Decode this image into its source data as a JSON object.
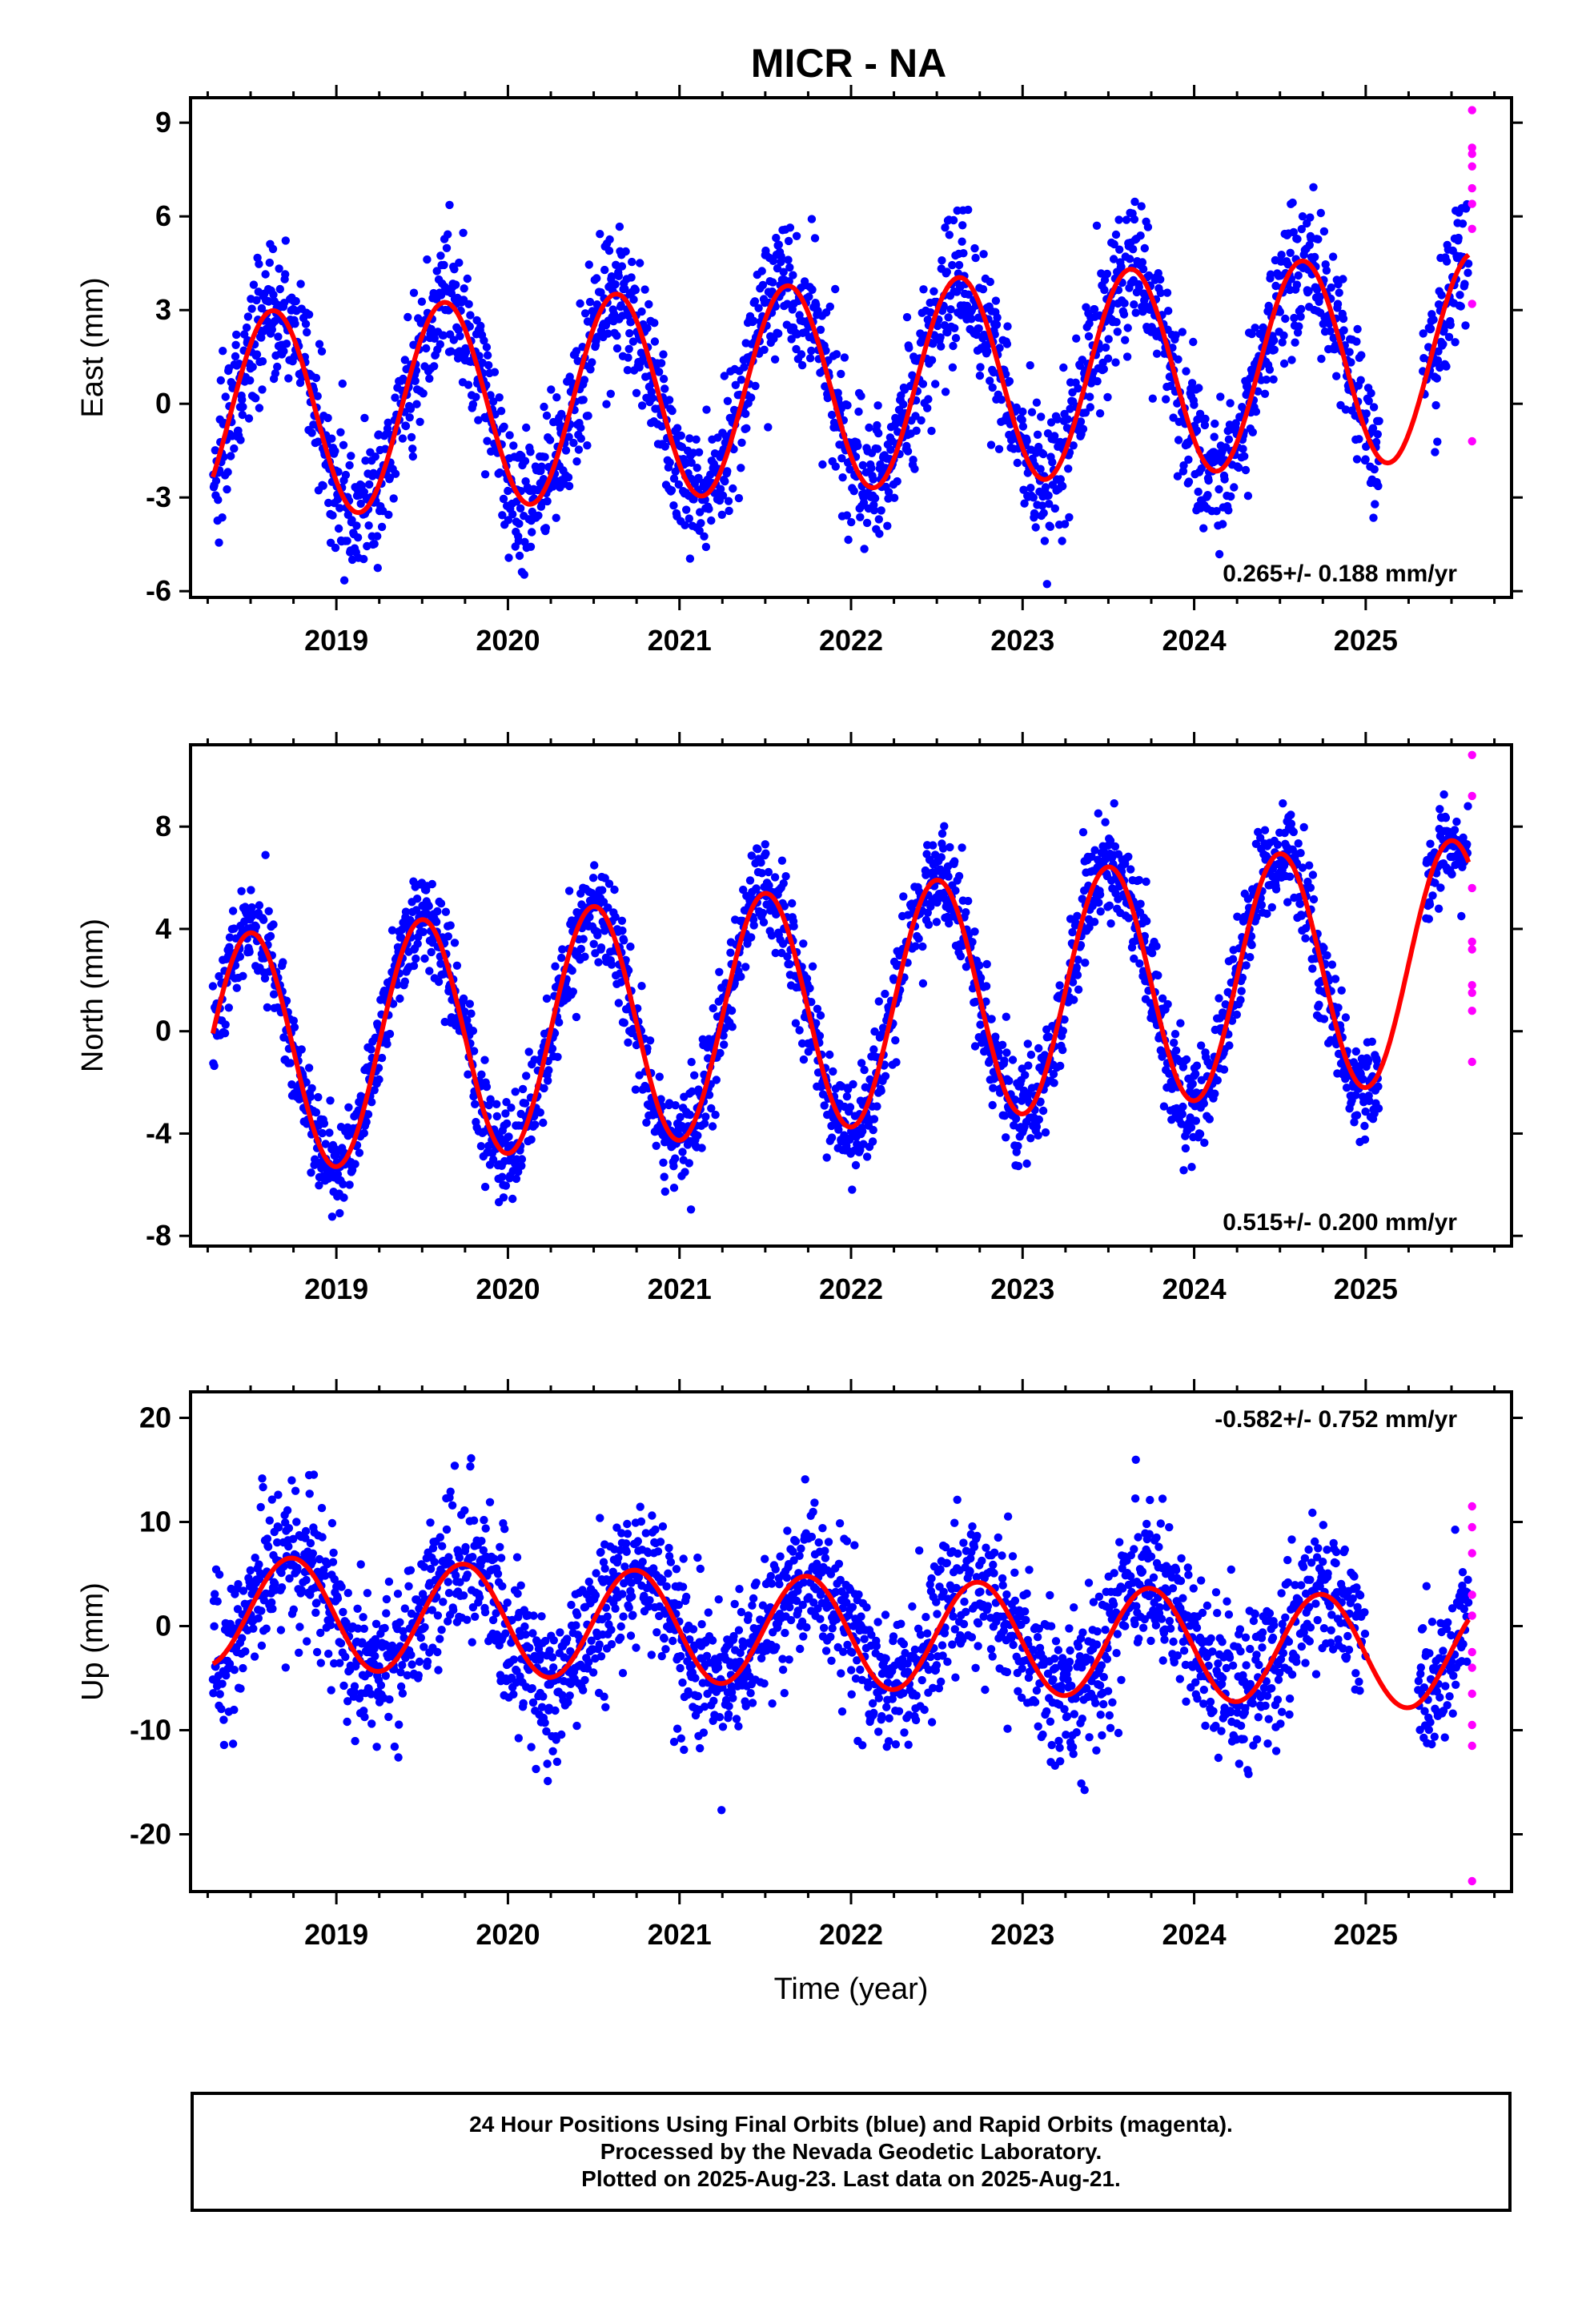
{
  "figure": {
    "title": "MICR - NA",
    "colors": {
      "final": "#0000ff",
      "rapid": "#ff00ff",
      "model": "#ff0000",
      "frame": "#000000"
    }
  },
  "chart_data": [
    {
      "type": "scatter",
      "component": "east",
      "ylabel": "East (mm)",
      "xlabel": "",
      "xlim": [
        2018.15,
        2025.85
      ],
      "ylim": [
        -6.2,
        9.8
      ],
      "yticks": [
        -6,
        -3,
        0,
        3,
        6,
        9
      ],
      "xticks": [
        2019,
        2020,
        2021,
        2022,
        2023,
        2024,
        2025
      ],
      "rate_label": "0.265+/- 0.188 mm/yr",
      "rate_position": "bottom-right",
      "model": {
        "offset": 0.55,
        "rate": 0.265,
        "ref_year": 2021.9,
        "amplitude": 3.3,
        "peak_phase": 0.63
      },
      "final_orbits": {
        "start": 2018.28,
        "end": 2025.6,
        "scatter_sd": 1.1,
        "gaps": [
          [
            2025.08,
            2025.33
          ]
        ]
      },
      "rapid_orbits": [
        {
          "x": 2025.62,
          "y": 9.4
        },
        {
          "x": 2025.62,
          "y": 8.2
        },
        {
          "x": 2025.62,
          "y": 8.0
        },
        {
          "x": 2025.62,
          "y": 7.6
        },
        {
          "x": 2025.62,
          "y": 6.9
        },
        {
          "x": 2025.62,
          "y": 6.4
        },
        {
          "x": 2025.62,
          "y": 5.6
        },
        {
          "x": 2025.62,
          "y": 3.2
        },
        {
          "x": 2025.62,
          "y": -1.2
        }
      ]
    },
    {
      "type": "scatter",
      "component": "north",
      "ylabel": "North (mm)",
      "xlabel": "",
      "xlim": [
        2018.15,
        2025.85
      ],
      "ylim": [
        -8.4,
        11.2
      ],
      "yticks": [
        -8,
        -4,
        0,
        4,
        8
      ],
      "xticks": [
        2019,
        2020,
        2021,
        2022,
        2023,
        2024,
        2025
      ],
      "rate_label": "0.515+/- 0.200 mm/yr",
      "rate_position": "bottom-right",
      "model": {
        "offset": 0.9,
        "rate": 0.515,
        "ref_year": 2021.9,
        "amplitude": 4.7,
        "peak_phase": 0.5
      },
      "final_orbits": {
        "start": 2018.28,
        "end": 2025.6,
        "scatter_sd": 1.0,
        "gaps": [
          [
            2025.08,
            2025.35
          ]
        ]
      },
      "rapid_orbits": [
        {
          "x": 2025.62,
          "y": 10.8
        },
        {
          "x": 2025.62,
          "y": 9.2
        },
        {
          "x": 2025.62,
          "y": 5.6
        },
        {
          "x": 2025.62,
          "y": 3.5
        },
        {
          "x": 2025.62,
          "y": 3.2
        },
        {
          "x": 2025.62,
          "y": 1.8
        },
        {
          "x": 2025.62,
          "y": 1.5
        },
        {
          "x": 2025.62,
          "y": 0.8
        },
        {
          "x": 2025.62,
          "y": -1.2
        }
      ]
    },
    {
      "type": "scatter",
      "component": "up",
      "ylabel": "Up (mm)",
      "xlabel": "Time (year)",
      "xlim": [
        2018.15,
        2025.85
      ],
      "ylim": [
        -25.5,
        22.5
      ],
      "yticks": [
        -20,
        -10,
        0,
        10,
        20
      ],
      "xticks": [
        2019,
        2020,
        2021,
        2022,
        2023,
        2024,
        2025
      ],
      "rate_label": "-0.582+/- 0.752 mm/yr",
      "rate_position": "top-right",
      "model": {
        "offset": -0.6,
        "rate": -0.582,
        "ref_year": 2021.9,
        "amplitude": 5.3,
        "peak_phase": 0.74
      },
      "final_orbits": {
        "start": 2018.28,
        "end": 2025.6,
        "scatter_sd": 3.6,
        "gaps": [
          [
            2025.0,
            2025.3
          ]
        ]
      },
      "rapid_orbits": [
        {
          "x": 2025.62,
          "y": 11.5
        },
        {
          "x": 2025.62,
          "y": 9.5
        },
        {
          "x": 2025.62,
          "y": 7.0
        },
        {
          "x": 2025.62,
          "y": 3.0
        },
        {
          "x": 2025.62,
          "y": 1.0
        },
        {
          "x": 2025.62,
          "y": -2.5
        },
        {
          "x": 2025.62,
          "y": -4.0
        },
        {
          "x": 2025.62,
          "y": -6.5
        },
        {
          "x": 2025.62,
          "y": -9.5
        },
        {
          "x": 2025.62,
          "y": -11.5
        },
        {
          "x": 2025.62,
          "y": -24.5
        }
      ]
    }
  ],
  "footer": {
    "line1": "24 Hour Positions Using Final Orbits (blue) and Rapid Orbits (magenta).",
    "line2": "Processed by the Nevada Geodetic Laboratory.",
    "line3": "Plotted on 2025-Aug-23. Last data on 2025-Aug-21."
  }
}
